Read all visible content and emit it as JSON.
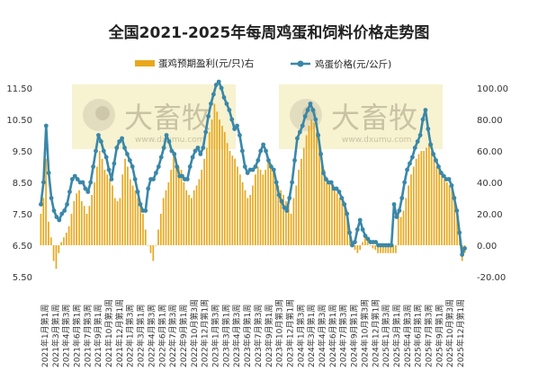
{
  "chart_data": {
    "type": "bar+line",
    "title": "全国2021-2025年每周鸡蛋和饲料价格走势图",
    "colors": {
      "bar": "#e8a81e",
      "line": "#3a87a8",
      "watermark_box": "#f6f0c8"
    },
    "watermark": {
      "brand": "大畜牧",
      "url": "www.dxumu.com"
    },
    "y_left": {
      "ticks": [
        "11.50",
        "10.50",
        "9.50",
        "8.50",
        "7.50",
        "6.50",
        "5.50"
      ],
      "min": 5.5,
      "max": 11.5
    },
    "y_right": {
      "ticks": [
        "100.00",
        "80.00",
        "60.00",
        "40.00",
        "20.00",
        "0.00",
        "-20.00"
      ],
      "min": -20,
      "max": 100
    },
    "x_tick_labels": [
      "2021年1月第1周",
      "2021年3月第1周",
      "2021年4月第3周",
      "2021年6月第1周",
      "2021年7月第3周",
      "2021年9月第1周",
      "2021年10月第3周",
      "2021年12月第1周",
      "2022年1月第3周",
      "2022年3月第1周",
      "2022年4月第3周",
      "2022年6月第1周",
      "2022年7月第3周",
      "2022年9月第1周",
      "2022年10月第3周",
      "2022年12月第1周",
      "2023年1月第3周",
      "2023年3月第1周",
      "2023年4月第3周",
      "2023年6月第1周",
      "2023年7月第3周",
      "2023年9月第1周",
      "2023年10月第3周",
      "2023年12月第1周",
      "2024年1月第3周",
      "2024年3月第1周",
      "2024年4月第3周",
      "2024年6月第1周",
      "2024年7月第3周",
      "2024年9月第1周",
      "2024年10月第3周",
      "2024年12月第1周",
      "2025年1月第3周",
      "2025年3月第1周",
      "2025年4月第3周",
      "2025年6月第1周",
      "2025年7月第3周",
      "2025年9月第1周",
      "2025年10月第3周",
      "2025年12月第1周"
    ],
    "series": [
      {
        "name": "蛋鸡预期盈利(元/只)右",
        "type": "bar",
        "axis": "right",
        "values": [
          20,
          30,
          55,
          15,
          5,
          -10,
          -15,
          -5,
          2,
          5,
          8,
          12,
          20,
          28,
          33,
          35,
          28,
          25,
          20,
          25,
          32,
          40,
          50,
          60,
          55,
          48,
          45,
          42,
          38,
          30,
          28,
          30,
          45,
          55,
          50,
          42,
          38,
          35,
          30,
          25,
          20,
          10,
          0,
          -5,
          -10,
          0,
          10,
          20,
          30,
          35,
          40,
          48,
          60,
          55,
          50,
          48,
          40,
          35,
          32,
          30,
          35,
          38,
          42,
          48,
          55,
          62,
          72,
          80,
          90,
          85,
          80,
          76,
          72,
          65,
          60,
          57,
          55,
          50,
          45,
          40,
          35,
          30,
          32,
          38,
          45,
          50,
          48,
          45,
          48,
          55,
          52,
          48,
          42,
          38,
          35,
          32,
          28,
          25,
          20,
          30,
          38,
          48,
          55,
          62,
          70,
          76,
          80,
          78,
          72,
          65,
          55,
          48,
          42,
          40,
          38,
          35,
          33,
          30,
          28,
          25,
          18,
          8,
          0,
          -3,
          -5,
          -3,
          2,
          5,
          3,
          0,
          -2,
          -3,
          -5,
          -5,
          -5,
          -5,
          -5,
          -5,
          -5,
          -5,
          22,
          18,
          22,
          30,
          38,
          45,
          50,
          55,
          58,
          60,
          60,
          62,
          65,
          60,
          55,
          50,
          48,
          45,
          42,
          40,
          38,
          36,
          30,
          20,
          5,
          -10,
          -5
        ]
      },
      {
        "name": "鸡蛋价格(元/公斤)",
        "type": "line",
        "axis": "left",
        "values": [
          7.8,
          8.5,
          10.3,
          8.8,
          8.0,
          7.6,
          7.4,
          7.3,
          7.5,
          7.6,
          7.8,
          8.2,
          8.6,
          8.7,
          8.6,
          8.5,
          8.5,
          8.3,
          8.2,
          8.5,
          9.0,
          9.5,
          10.0,
          9.8,
          9.5,
          9.3,
          8.9,
          8.6,
          9.1,
          9.6,
          9.8,
          9.9,
          9.6,
          9.4,
          9.2,
          9.0,
          8.6,
          8.2,
          7.8,
          7.6,
          7.6,
          8.3,
          8.6,
          8.6,
          8.8,
          9.0,
          9.3,
          9.6,
          10.0,
          9.8,
          9.5,
          9.4,
          9.0,
          8.7,
          8.7,
          8.6,
          8.6,
          9.0,
          9.3,
          9.5,
          9.6,
          9.4,
          9.6,
          10.1,
          10.6,
          11.0,
          11.3,
          11.6,
          11.7,
          11.5,
          11.2,
          11.0,
          10.8,
          10.5,
          10.2,
          10.3,
          10.0,
          9.5,
          9.0,
          8.8,
          8.9,
          8.9,
          9.0,
          9.2,
          9.5,
          9.7,
          9.5,
          9.2,
          9.0,
          8.9,
          8.5,
          8.1,
          7.9,
          7.7,
          7.6,
          8.0,
          8.5,
          9.2,
          9.9,
          10.1,
          10.3,
          10.6,
          10.8,
          11.0,
          10.8,
          10.5,
          10.0,
          9.4,
          8.8,
          8.6,
          8.5,
          8.5,
          8.3,
          8.3,
          8.2,
          8.0,
          7.8,
          7.5,
          6.9,
          6.5,
          6.6,
          7.0,
          7.3,
          7.0,
          6.8,
          6.7,
          6.6,
          6.6,
          6.6,
          6.5,
          6.5,
          6.5,
          6.5,
          6.5,
          6.5,
          7.8,
          7.4,
          7.6,
          8.0,
          8.5,
          8.9,
          9.1,
          9.3,
          9.6,
          9.8,
          10.0,
          10.5,
          10.8,
          10.2,
          9.7,
          9.4,
          9.2,
          9.0,
          8.8,
          8.7,
          8.6,
          8.6,
          8.4,
          8.0,
          7.6,
          6.9,
          6.2,
          6.4
        ]
      }
    ]
  }
}
